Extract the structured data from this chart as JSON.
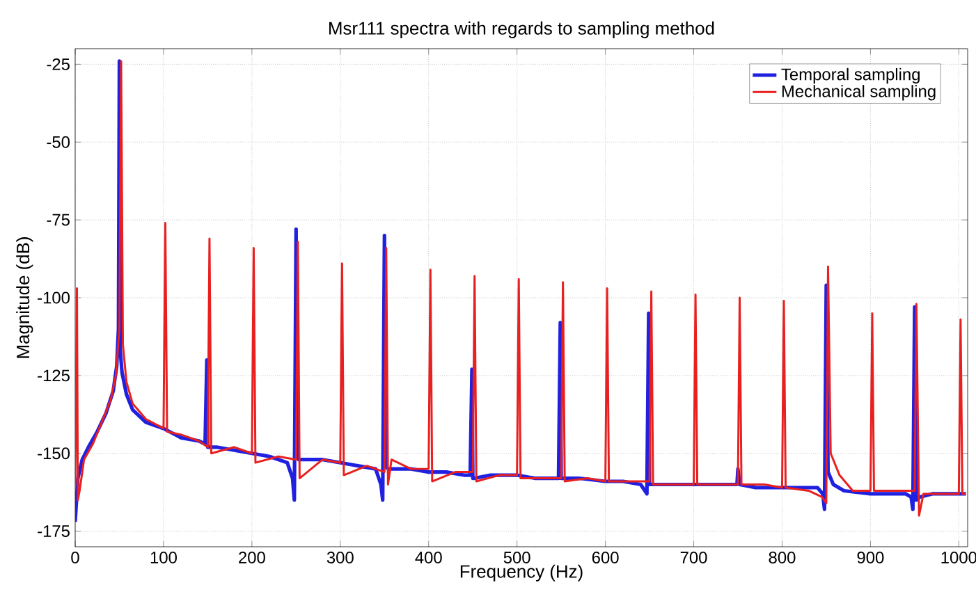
{
  "chart_data": {
    "type": "line",
    "title": "Msr111 spectra with regards to sampling method",
    "xlabel": "Frequency (Hz)",
    "ylabel": "Magnitude (dB)",
    "xlim": [
      0,
      1010
    ],
    "ylim": [
      -180,
      -20
    ],
    "xticks": [
      0,
      100,
      200,
      300,
      400,
      500,
      600,
      700,
      800,
      900,
      1000
    ],
    "yticks": [
      -175,
      -150,
      -125,
      -100,
      -75,
      -50,
      -25
    ],
    "grid": true,
    "legend": "top right",
    "marker": "none",
    "line_style": "solid",
    "series": [
      {
        "name": "Temporal sampling",
        "color": "#2020e0",
        "x": [
          0,
          3,
          8,
          15,
          25,
          35,
          43,
          47,
          49,
          50,
          51,
          53,
          58,
          65,
          80,
          100,
          120,
          140,
          147,
          149,
          150,
          152,
          160,
          180,
          200,
          220,
          240,
          246,
          248,
          250,
          251,
          253,
          260,
          280,
          300,
          320,
          340,
          346,
          348,
          350,
          351,
          354,
          360,
          380,
          400,
          420,
          440,
          447,
          449,
          450,
          452,
          470,
          500,
          520,
          540,
          547,
          549,
          550,
          552,
          570,
          600,
          620,
          640,
          647,
          649,
          650,
          652,
          670,
          700,
          720,
          745,
          749,
          750,
          752,
          770,
          800,
          820,
          840,
          846,
          848,
          850,
          852,
          858,
          870,
          900,
          920,
          940,
          946,
          948,
          950,
          952,
          956,
          970,
          1000,
          1008
        ],
        "values": [
          -172,
          -158,
          -152,
          -148,
          -143,
          -137,
          -130,
          -122,
          -110,
          -24,
          -117,
          -124,
          -131,
          -136,
          -140,
          -142,
          -145,
          -146,
          -147,
          -120,
          -148,
          -148,
          -148,
          -149,
          -150,
          -151,
          -153,
          -158,
          -165,
          -78,
          -150,
          -152,
          -152,
          -152,
          -153,
          -154,
          -155,
          -160,
          -165,
          -80,
          -154,
          -155,
          -155,
          -155,
          -156,
          -156,
          -157,
          -157,
          -123,
          -158,
          -158,
          -157,
          -157,
          -158,
          -158,
          -158,
          -108,
          -158,
          -158,
          -158,
          -159,
          -159,
          -160,
          -163,
          -105,
          -160,
          -160,
          -160,
          -160,
          -160,
          -160,
          -160,
          -155,
          -160,
          -161,
          -161,
          -161,
          -161,
          -163,
          -168,
          -96,
          -156,
          -160,
          -162,
          -163,
          -163,
          -163,
          -164,
          -168,
          -103,
          -165,
          -164,
          -163,
          -163,
          -163
        ]
      },
      {
        "name": "Mechanical sampling",
        "color": "#e82020",
        "x": [
          0,
          2,
          3,
          5,
          10,
          20,
          30,
          40,
          46,
          50,
          52,
          54,
          58,
          65,
          80,
          100,
          102,
          104,
          120,
          140,
          150,
          152,
          154,
          180,
          200,
          202,
          204,
          230,
          250,
          252,
          254,
          280,
          300,
          302,
          304,
          330,
          350,
          352,
          354,
          358,
          380,
          400,
          402,
          404,
          430,
          450,
          452,
          454,
          480,
          500,
          502,
          504,
          530,
          550,
          552,
          554,
          580,
          600,
          602,
          604,
          630,
          650,
          652,
          654,
          680,
          700,
          702,
          704,
          730,
          750,
          752,
          754,
          780,
          800,
          802,
          804,
          830,
          845,
          850,
          852,
          855,
          865,
          880,
          900,
          902,
          904,
          930,
          950,
          952,
          955,
          960,
          980,
          1000,
          1002,
          1004,
          1008
        ],
        "values": [
          -160,
          -97,
          -165,
          -162,
          -152,
          -147,
          -140,
          -133,
          -125,
          -110,
          -24,
          -115,
          -127,
          -134,
          -139,
          -142,
          -76,
          -143,
          -144,
          -146,
          -148,
          -81,
          -150,
          -148,
          -150,
          -84,
          -153,
          -151,
          -152,
          -82,
          -158,
          -152,
          -153,
          -89,
          -157,
          -154,
          -156,
          -84,
          -160,
          -152,
          -155,
          -155,
          -91,
          -159,
          -156,
          -156,
          -93,
          -159,
          -157,
          -157,
          -94,
          -158,
          -158,
          -158,
          -95,
          -159,
          -158,
          -159,
          -97,
          -159,
          -159,
          -159,
          -98,
          -160,
          -160,
          -160,
          -99,
          -160,
          -160,
          -160,
          -100,
          -160,
          -160,
          -161,
          -101,
          -161,
          -162,
          -164,
          -166,
          -90,
          -150,
          -157,
          -162,
          -162,
          -105,
          -162,
          -162,
          -162,
          -102,
          -170,
          -163,
          -163,
          -163,
          -107,
          -163,
          -163
        ]
      }
    ]
  }
}
